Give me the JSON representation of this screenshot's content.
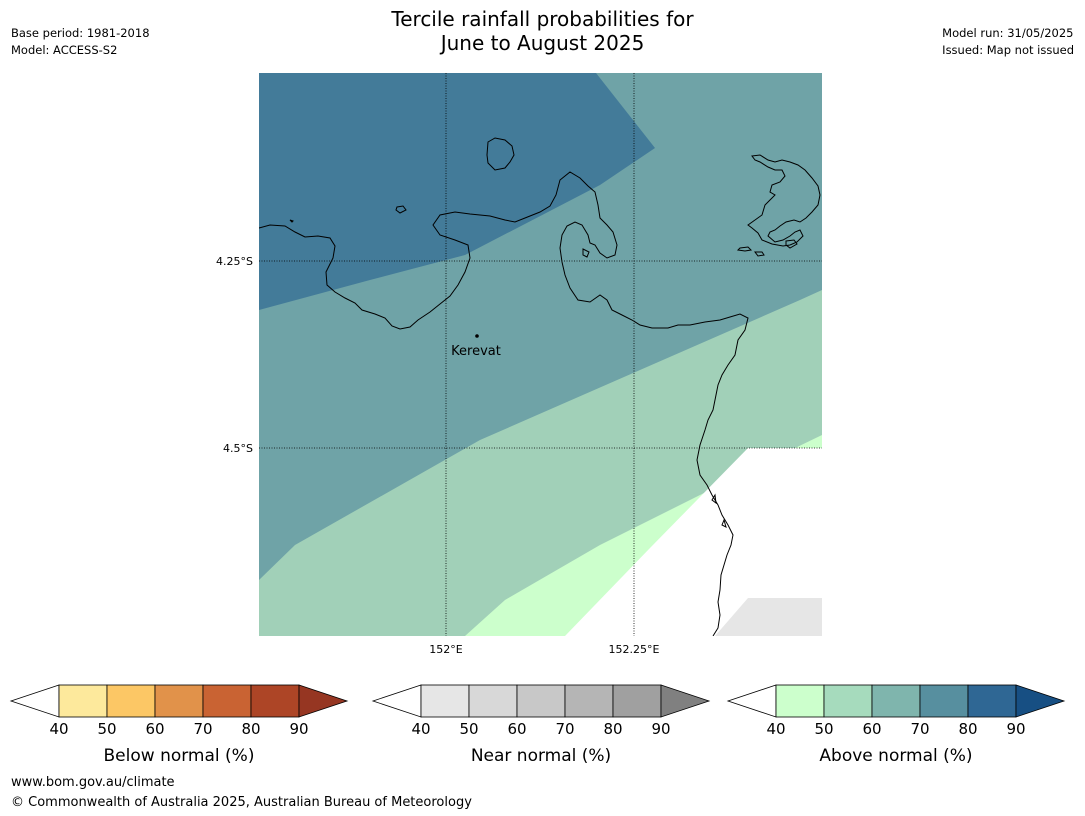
{
  "title": {
    "line1": "Tercile rainfall probabilities for",
    "line2": "June to August 2025"
  },
  "meta_left": {
    "base_period": "Base period: 1981-2018",
    "model": "Model: ACCESS-S2"
  },
  "meta_right": {
    "model_run": "Model run: 31/05/2025",
    "issued": "Issued: Map not issued"
  },
  "map": {
    "lat_labels": [
      "4.25°S",
      "4.5°S"
    ],
    "lon_labels": [
      "152°E",
      "152.25°E"
    ],
    "place_label": "Kerevat",
    "colors": {
      "above_40_50": "#ccffcc",
      "above_50_60": "#a1d0b8",
      "above_60_70": "#6fa3a7",
      "above_70_80": "#437b99",
      "near_40_50": "#e6e6e6"
    }
  },
  "legends": [
    {
      "name": "below-normal",
      "label": "Below normal (%)",
      "ticks": [
        "40",
        "50",
        "60",
        "70",
        "80",
        "90"
      ],
      "low_color": "#ffffff",
      "colors": [
        "#fde99c",
        "#fcc765",
        "#e1924a",
        "#c96333",
        "#ad4526"
      ],
      "high_color": "#963622"
    },
    {
      "name": "near-normal",
      "label": "Near normal (%)",
      "ticks": [
        "40",
        "50",
        "60",
        "70",
        "80",
        "90"
      ],
      "low_color": "#ffffff",
      "colors": [
        "#e6e6e6",
        "#d8d8d8",
        "#c8c8c8",
        "#b5b5b5",
        "#a0a0a0"
      ],
      "high_color": "#808080"
    },
    {
      "name": "above-normal",
      "label": "Above normal (%)",
      "ticks": [
        "40",
        "50",
        "60",
        "70",
        "80",
        "90"
      ],
      "low_color": "#ffffff",
      "colors": [
        "#ccffcc",
        "#a6dbbd",
        "#7fb5ad",
        "#578f9f",
        "#2f6794"
      ],
      "high_color": "#174f83"
    }
  ],
  "footer": {
    "url": "www.bom.gov.au/climate",
    "copyright": "© Commonwealth of Australia 2025, Australian Bureau of Meteorology"
  }
}
